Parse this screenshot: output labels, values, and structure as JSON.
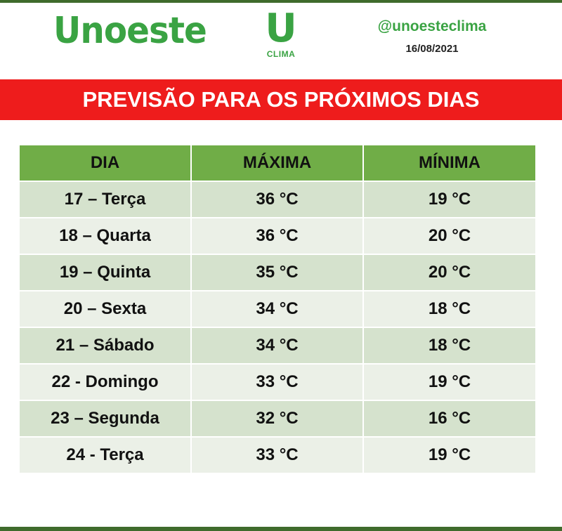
{
  "header": {
    "brand": "Unoeste",
    "clima_logo_letter": "U",
    "clima_logo_text": "CLIMA",
    "handle": "@unoesteclima",
    "date": "16/08/2021",
    "brand_color": "#3aa343"
  },
  "banner": {
    "title": "PREVISÃO PARA OS PRÓXIMOS DIAS",
    "color": "#ee1c1c"
  },
  "table": {
    "columns": [
      "DIA",
      "MÁXIMA",
      "MÍNIMA"
    ],
    "header_color": "#70ad47",
    "rows": [
      {
        "dia": "17 – Terça",
        "maxima": "36 °C",
        "minima": "19 °C"
      },
      {
        "dia": "18 – Quarta",
        "maxima": "36 °C",
        "minima": "20 °C"
      },
      {
        "dia": "19 – Quinta",
        "maxima": "35 °C",
        "minima": "20 °C"
      },
      {
        "dia": "20 – Sexta",
        "maxima": "34 °C",
        "minima": "18 °C"
      },
      {
        "dia": "21 – Sábado",
        "maxima": "34 °C",
        "minima": "18 °C"
      },
      {
        "dia": "22 - Domingo",
        "maxima": "33 °C",
        "minima": "19 °C"
      },
      {
        "dia": "23 – Segunda",
        "maxima": "32 °C",
        "minima": "16 °C"
      },
      {
        "dia": "24 - Terça",
        "maxima": "33 °C",
        "minima": "19 °C"
      }
    ]
  }
}
